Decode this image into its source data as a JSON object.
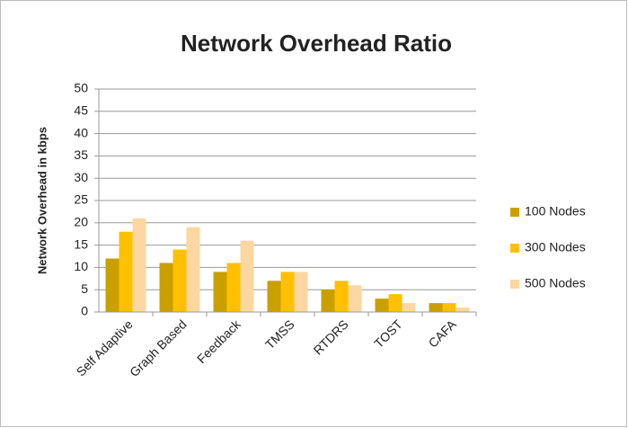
{
  "chart_data": {
    "type": "bar",
    "title": "Network Overhead Ratio",
    "y_label": "Network Overhead in kbps",
    "categories": [
      "Self Adaptive",
      "Graph Based",
      "Feedback",
      "TMSS",
      "RTDRS",
      "TOST",
      "CAFA"
    ],
    "series": [
      {
        "name": "100 Nodes",
        "color": "#c9a000",
        "values": [
          12,
          11,
          9,
          7,
          5,
          3,
          2
        ]
      },
      {
        "name": "300 Nodes",
        "color": "#ffc000",
        "values": [
          18,
          14,
          11,
          9,
          7,
          4,
          2
        ]
      },
      {
        "name": "500 Nodes",
        "color": "#fcd7a1",
        "values": [
          21,
          19,
          16,
          9,
          6,
          2,
          1
        ]
      }
    ],
    "ylim": [
      0,
      50
    ],
    "yticks": [
      0,
      5,
      10,
      15,
      20,
      25,
      30,
      35,
      40,
      45,
      50
    ],
    "grid": true,
    "legend": "right"
  }
}
